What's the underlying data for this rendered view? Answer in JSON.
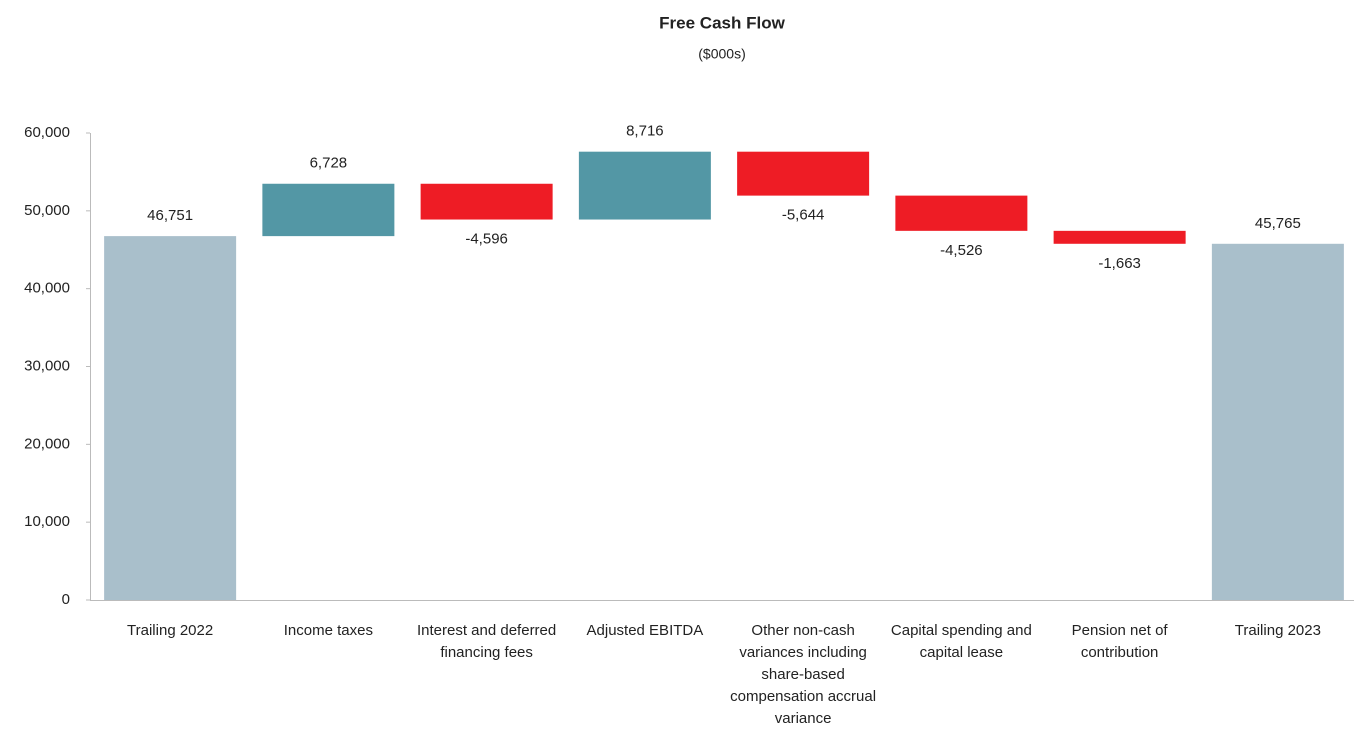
{
  "chart_data": {
    "type": "waterfall",
    "title": "Free Cash Flow",
    "subtitle": "($000s)",
    "categories": [
      "Trailing 2022",
      "Income taxes",
      "Interest and deferred financing fees",
      "Adjusted EBITDA",
      "Other non-cash variances including share-based compensation accrual variance",
      "Capital spending and capital lease",
      "Pension net of contribution",
      "Trailing 2023"
    ],
    "values": [
      46751,
      6728,
      -4596,
      8716,
      -5644,
      -4526,
      -1663,
      45765
    ],
    "value_labels": [
      "46,751",
      "6,728",
      "-4,596",
      "8,716",
      "-5,644",
      "-4,526",
      "-1,663",
      "45,765"
    ],
    "total": [
      true,
      false,
      false,
      false,
      false,
      false,
      false,
      true
    ],
    "total_color": "#a9bfcb",
    "increase_color": "#5397a5",
    "decrease_color": "#ee1c25",
    "ylim": [
      0,
      60000
    ],
    "yticks": [
      0,
      {
        "value": 10000,
        "label": "10,000"
      },
      {
        "value": 20000,
        "label": "20,000"
      },
      {
        "value": 30000,
        "label": "30,000"
      },
      {
        "value": 40000,
        "label": "40,000"
      },
      {
        "value": 50000,
        "label": "50,000"
      },
      {
        "value": 60000,
        "label": "60,000"
      }
    ],
    "grid": false
  }
}
